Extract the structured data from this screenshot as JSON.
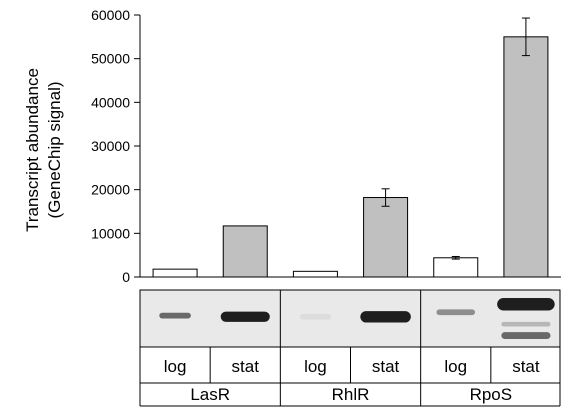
{
  "chart_data": {
    "type": "bar",
    "ylabel": [
      "Transcript abundance",
      "(GeneChip signal)"
    ],
    "ylim": [
      0,
      60000
    ],
    "y_ticks": [
      "0",
      "10000",
      "20000",
      "30000",
      "40000",
      "50000",
      "60000"
    ],
    "groups": [
      "LasR",
      "RhlR",
      "RpoS"
    ],
    "conditions": [
      "log",
      "stat"
    ],
    "bars": [
      {
        "group": "LasR",
        "condition": "log",
        "value": 1800,
        "error": 0
      },
      {
        "group": "LasR",
        "condition": "stat",
        "value": 11700,
        "error": 0
      },
      {
        "group": "RhlR",
        "condition": "log",
        "value": 1300,
        "error": 0
      },
      {
        "group": "RhlR",
        "condition": "stat",
        "value": 18200,
        "error": 2000
      },
      {
        "group": "RpoS",
        "condition": "log",
        "value": 4400,
        "error": 300
      },
      {
        "group": "RpoS",
        "condition": "stat",
        "value": 55000,
        "error": 4300
      }
    ],
    "colors": {
      "log": "#ffffff",
      "stat": "#c0c0c0"
    },
    "grid": false,
    "legend": "none",
    "blot": {
      "background": "#e9e9e9",
      "lanes": [
        {
          "group": "LasR",
          "condition": "log",
          "bands": [
            {
              "pos": 0.45,
              "intensity": 0.75,
              "thickness": 0.1,
              "width": 0.45
            }
          ]
        },
        {
          "group": "LasR",
          "condition": "stat",
          "bands": [
            {
              "pos": 0.47,
              "intensity": 1.0,
              "thickness": 0.18,
              "width": 0.7
            }
          ]
        },
        {
          "group": "RhlR",
          "condition": "log",
          "bands": [
            {
              "pos": 0.47,
              "intensity": 0.12,
              "thickness": 0.1,
              "width": 0.45
            }
          ]
        },
        {
          "group": "RhlR",
          "condition": "stat",
          "bands": [
            {
              "pos": 0.47,
              "intensity": 1.0,
              "thickness": 0.2,
              "width": 0.72
            }
          ]
        },
        {
          "group": "RpoS",
          "condition": "log",
          "bands": [
            {
              "pos": 0.39,
              "intensity": 0.6,
              "thickness": 0.1,
              "width": 0.55
            }
          ]
        },
        {
          "group": "RpoS",
          "condition": "stat",
          "bands": [
            {
              "pos": 0.25,
              "intensity": 1.0,
              "thickness": 0.22,
              "width": 0.82
            },
            {
              "pos": 0.6,
              "intensity": 0.4,
              "thickness": 0.08,
              "width": 0.7
            },
            {
              "pos": 0.8,
              "intensity": 0.75,
              "thickness": 0.12,
              "width": 0.7
            }
          ]
        }
      ]
    }
  }
}
